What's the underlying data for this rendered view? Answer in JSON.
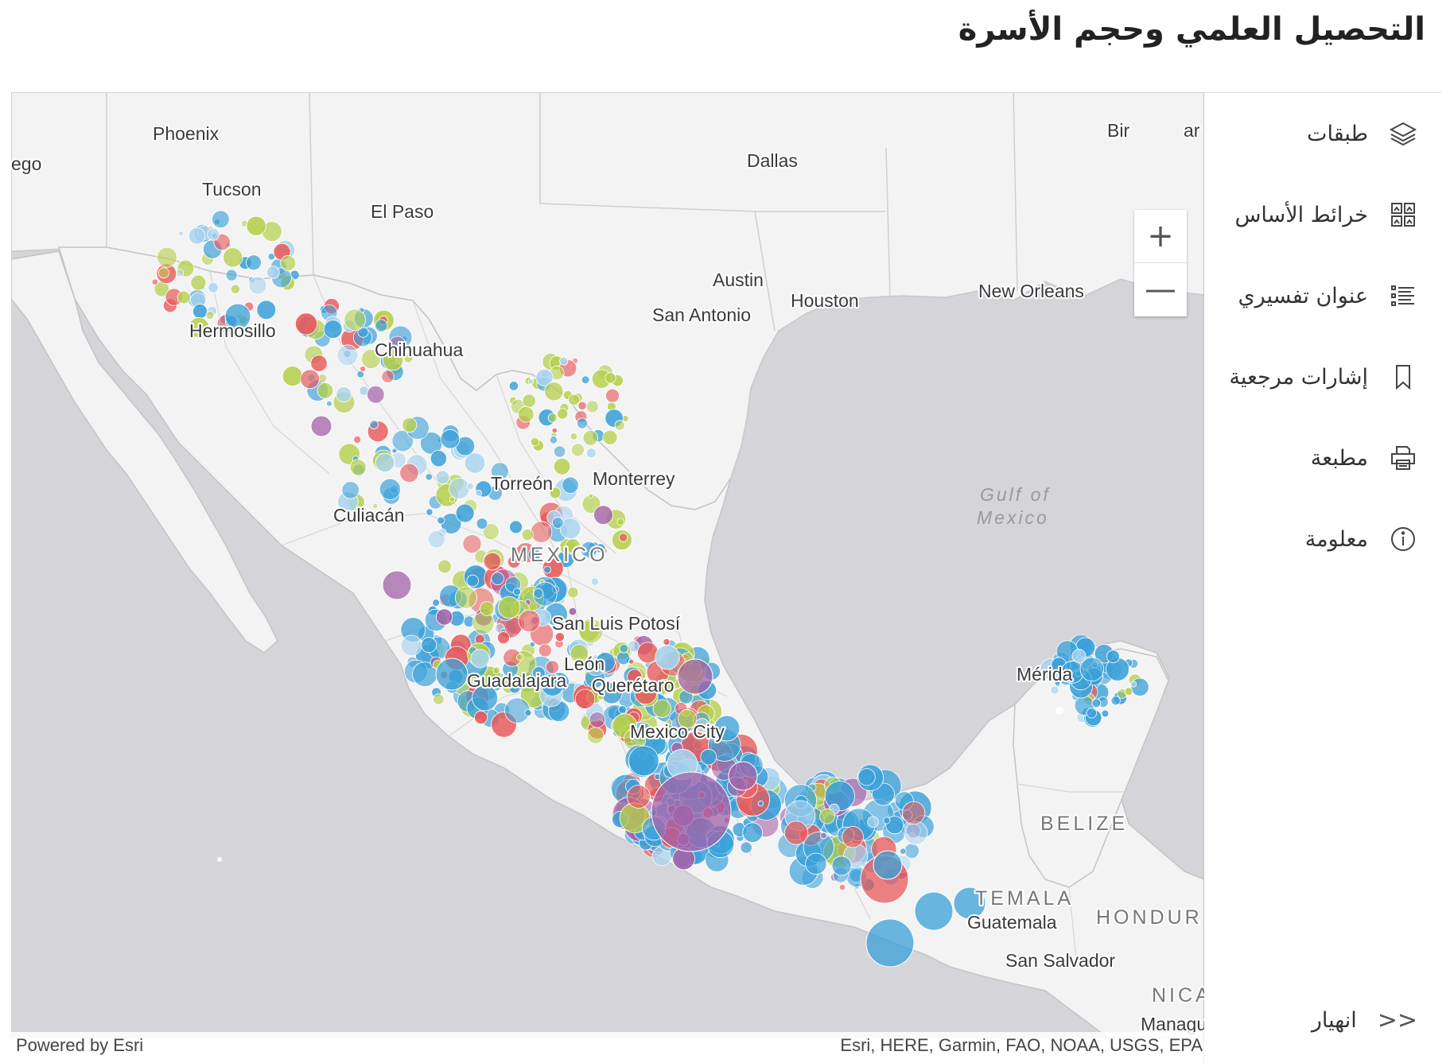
{
  "page": {
    "title": "التحصيل العلمي وحجم الأسرة"
  },
  "map": {
    "labels": {
      "phoenix": "Phoenix",
      "diego": "ego",
      "tucson": "Tucson",
      "dallas": "Dallas",
      "el_paso": "El Paso",
      "austin": "Austin",
      "san_antonio": "San Antonio",
      "houston": "Houston",
      "new_orleans": "New Orleans",
      "hermosillo": "Hermosillo",
      "chihuahua": "Chihuahua",
      "torreon": "Torreón",
      "monterrey": "Monterrey",
      "culiacan": "Culiacán",
      "mexico": "MEXICO",
      "gulf_line1": "Gulf of",
      "gulf_line2": "Mexico",
      "san_luis_potosi": "San Luis Potosí",
      "leon": "León",
      "guadalajara": "Guadalajara",
      "queretaro": "Querétaro",
      "mexico_city": "Mexico City",
      "merida": "Mérida",
      "belize": "BELIZE",
      "guatemala_country": "TEMALA",
      "guatemala_city": "Guatemala",
      "honduras": "HONDUR",
      "san_salvador": "San Salvador",
      "nicaragua": "NICA",
      "managua": "Managu",
      "birmingham": "Bir",
      "atlanta_part": "ar"
    },
    "colors": {
      "water": "#d4d4d9",
      "land": "#f3f3f3",
      "border": "#c4c4c4",
      "blue": "#3aa0d8",
      "red": "#e8595a",
      "green": "#b5cf4b",
      "purple": "#a362a8",
      "light_blue": "#a9d3ee"
    },
    "zoom": {
      "in_icon": "plus-icon",
      "out_icon": "minus-icon"
    },
    "attribution": {
      "powered_by": "Powered by Esri",
      "sources": "Esri, HERE, Garmin, FAO, NOAA, USGS, EPA"
    }
  },
  "panel": {
    "items": [
      {
        "label": "طبقات",
        "icon": "layers-icon"
      },
      {
        "label": "خرائط الأساس",
        "icon": "basemap-gallery-icon"
      },
      {
        "label": "عنوان تفسيري",
        "icon": "legend-icon"
      },
      {
        "label": "إشارات مرجعية",
        "icon": "bookmark-icon"
      },
      {
        "label": "مطبعة",
        "icon": "print-icon"
      },
      {
        "label": "معلومة",
        "icon": "info-icon"
      }
    ],
    "collapse": {
      "label": "انهيار",
      "icon": "collapse-icon",
      "glyph": "<<"
    }
  }
}
